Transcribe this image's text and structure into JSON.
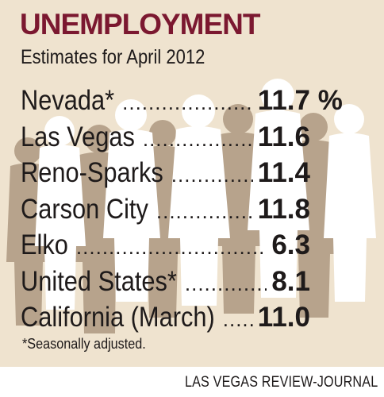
{
  "title": "UNEMPLOYMENT",
  "subtitle": "Estimates for April 2012",
  "footnote": "*Seasonally adjusted.",
  "credit": "LAS VEGAS REVIEW-JOURNAL",
  "colors": {
    "background": "#efe3cf",
    "title": "#7b1830",
    "text": "#1e1a1a",
    "silhouette_dark": "#b7a38c",
    "silhouette_light": "#ffffff"
  },
  "chart_data": {
    "type": "table",
    "title": "UNEMPLOYMENT",
    "subtitle": "Estimates for April 2012",
    "rows": [
      {
        "label": "Nevada*",
        "value": "11.7 %"
      },
      {
        "label": "Las Vegas",
        "value": "11.6"
      },
      {
        "label": "Reno-Sparks",
        "value": "11.4"
      },
      {
        "label": "Carson City",
        "value": "11.8"
      },
      {
        "label": "Elko",
        "value": "6.3"
      },
      {
        "label": "United States*",
        "value": "8.1"
      },
      {
        "label": "California (March)",
        "value": "11.0"
      }
    ]
  }
}
